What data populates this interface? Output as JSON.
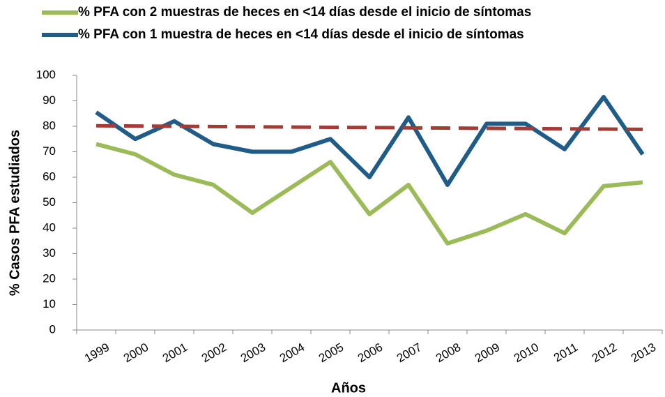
{
  "chart_data": {
    "type": "line",
    "xlabel": "Años",
    "ylabel": "% Casos  PFA estudiados",
    "categories": [
      "1999",
      "2000",
      "2001",
      "2002",
      "2003",
      "2004",
      "2005",
      "2006",
      "2007",
      "2008",
      "2009",
      "2010",
      "2011",
      "2012",
      "2013"
    ],
    "series": [
      {
        "name": "% PFA con 2 muestras de heces en <14 días desde el inicio de síntomas",
        "color": "#9bbb59",
        "values": [
          73,
          69,
          61,
          57,
          46,
          56,
          66,
          45.5,
          57,
          34,
          39,
          45.5,
          38,
          56.5,
          58
        ]
      },
      {
        "name": "% PFA con 1 muestra de heces en <14 días desde el inicio de síntomas",
        "color": "#1f5c87",
        "values": [
          85.5,
          75,
          82,
          73,
          70,
          70,
          75,
          60,
          83.5,
          57,
          81,
          81,
          71,
          91.5,
          69
        ]
      },
      {
        "color": "#a33c35",
        "dashed": true,
        "values": [
          80.2,
          80.1,
          80,
          79.9,
          79.8,
          79.7,
          79.6,
          79.5,
          79.4,
          79.3,
          79.2,
          79.1,
          79,
          78.9,
          78.8
        ]
      }
    ],
    "ylim": [
      0,
      100
    ],
    "yticks": [
      0,
      10,
      20,
      30,
      40,
      50,
      60,
      70,
      80,
      90,
      100
    ]
  }
}
